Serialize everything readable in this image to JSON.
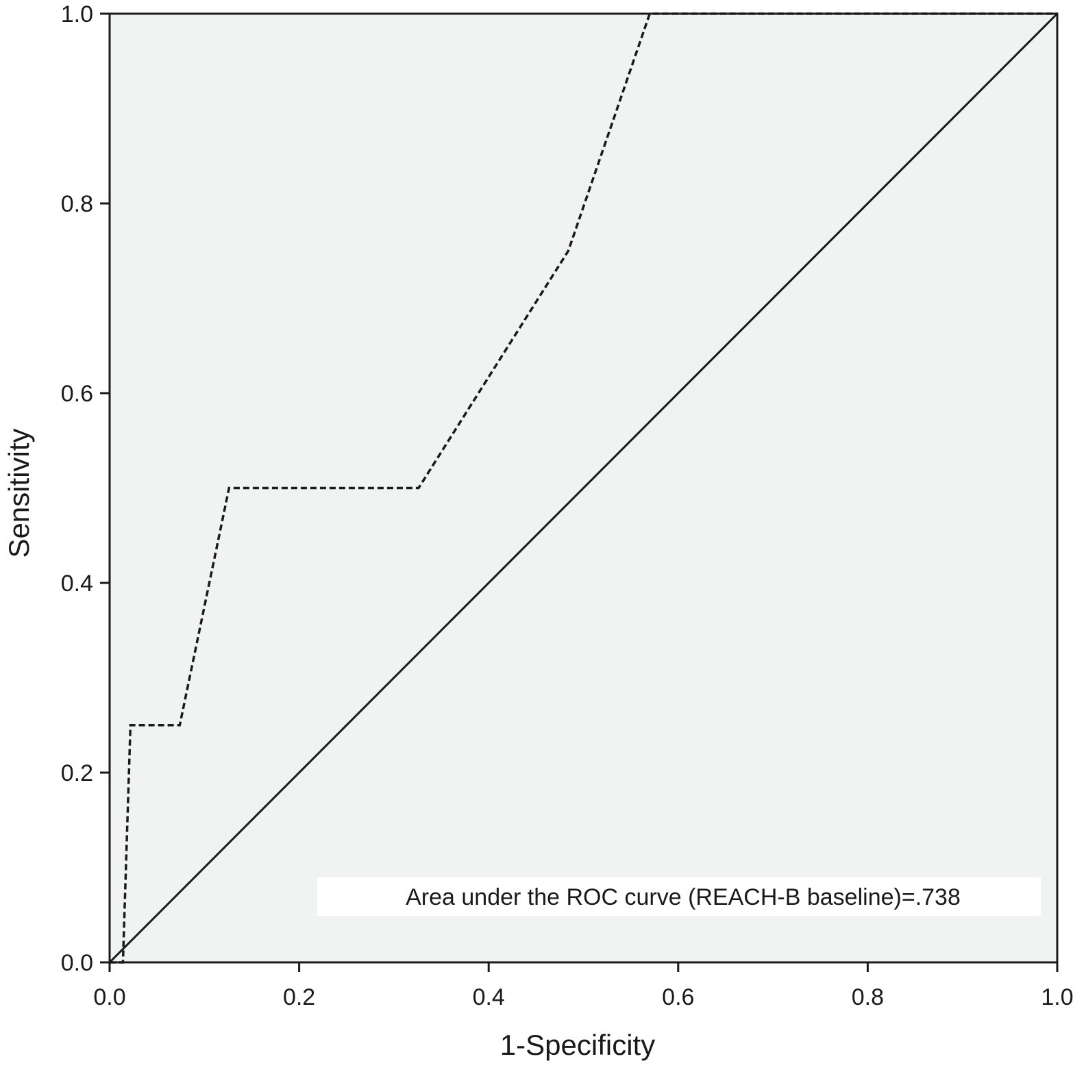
{
  "chart_data": {
    "type": "line",
    "title": "",
    "xlabel": "1-Specificity",
    "ylabel": "Sensitivity",
    "xlim": [
      0,
      1
    ],
    "ylim": [
      0,
      1
    ],
    "x_ticks": [
      "0.0",
      "0.2",
      "0.4",
      "0.6",
      "0.8",
      "1.0"
    ],
    "y_ticks": [
      "0.0",
      "0.2",
      "0.4",
      "0.6",
      "0.8",
      "1.0"
    ],
    "x_tick_values": [
      0,
      0.2,
      0.4,
      0.6,
      0.8,
      1.0
    ],
    "y_tick_values": [
      0,
      0.2,
      0.4,
      0.6,
      0.8,
      1.0
    ],
    "grid": false,
    "legend": "none",
    "series": [
      {
        "style": "dashed",
        "color": "#1a1a1a",
        "points": [
          [
            0.0,
            0.0
          ],
          [
            0.014,
            0.0
          ],
          [
            0.022,
            0.25
          ],
          [
            0.074,
            0.25
          ],
          [
            0.126,
            0.5
          ],
          [
            0.326,
            0.5
          ],
          [
            0.484,
            0.75
          ],
          [
            0.57,
            1.0
          ],
          [
            1.0,
            1.0
          ]
        ]
      },
      {
        "style": "solid",
        "color": "#1a1a1a",
        "points": [
          [
            0.0,
            0.0
          ],
          [
            1.0,
            1.0
          ]
        ]
      }
    ],
    "annotation": {
      "text": "Area under the ROC curve (REACH-B baseline)=.738",
      "position": "bottom-right"
    },
    "colors": {
      "plot_background": "#f1f3f2",
      "axis": "#1a1a1a",
      "annotation_box": "#ffffff"
    }
  }
}
